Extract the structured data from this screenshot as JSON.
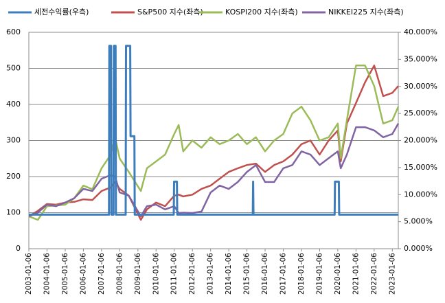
{
  "chart_data": {
    "type": "line",
    "x": [
      "2003-01-06",
      "2003-07-06",
      "2004-01-06",
      "2004-07-06",
      "2005-01-06",
      "2005-07-06",
      "2006-01-06",
      "2006-07-06",
      "2007-01-06",
      "2007-07-06",
      "2007-10-06",
      "2008-01-06",
      "2008-07-06",
      "2009-03-06",
      "2009-07-06",
      "2010-01-06",
      "2010-07-06",
      "2011-01-06",
      "2011-04-06",
      "2011-07-06",
      "2012-01-06",
      "2012-07-06",
      "2013-01-06",
      "2013-07-06",
      "2014-01-06",
      "2014-07-06",
      "2015-01-06",
      "2015-07-06",
      "2016-01-06",
      "2016-07-06",
      "2017-01-06",
      "2017-07-06",
      "2018-01-06",
      "2018-07-06",
      "2019-01-06",
      "2019-07-06",
      "2020-01-06",
      "2020-03-06",
      "2020-07-06",
      "2021-01-06",
      "2021-07-06",
      "2022-01-06",
      "2022-07-06",
      "2023-01-06",
      "2023-05-06"
    ],
    "series": [
      {
        "name": "세전수익률(우측)",
        "color": "#3e7dbc",
        "axis": "y2",
        "x": [
          "2003-01-06",
          "2007-06-04",
          "2007-06-11",
          "2007-07-16",
          "2007-07-23",
          "2007-09-03",
          "2007-09-10",
          "2007-10-15",
          "2007-10-22",
          "2008-05-05",
          "2008-05-12",
          "2008-08-04",
          "2008-08-11",
          "2008-10-27",
          "2008-11-03",
          "2010-12-27",
          "2011-01-03",
          "2011-02-28",
          "2011-03-07",
          "2015-05-04",
          "2015-05-11",
          "2015-05-18",
          "2019-11-04",
          "2019-11-11",
          "2020-01-27",
          "2020-02-03",
          "2023-05-06"
        ],
        "values": [
          6.3,
          6.3,
          37.5,
          37.5,
          6.3,
          6.3,
          37.5,
          37.5,
          6.3,
          6.3,
          37.5,
          37.5,
          20.8,
          20.8,
          6.3,
          6.3,
          12.4,
          12.4,
          6.3,
          6.3,
          12.4,
          6.3,
          6.3,
          12.4,
          12.4,
          6.3,
          6.3
        ]
      },
      {
        "name": "S&P500 지수(좌측)",
        "color": "#c0504d",
        "values": [
          90,
          105,
          124,
          122,
          128,
          130,
          137,
          135,
          160,
          170,
          185,
          166,
          147,
          80,
          109,
          128,
          118,
          147,
          150,
          145,
          150,
          166,
          175,
          194,
          213,
          223,
          232,
          236,
          213,
          232,
          242,
          261,
          290,
          300,
          261,
          300,
          328,
          242,
          347,
          404,
          461,
          508,
          423,
          432,
          451
        ]
      },
      {
        "name": "KOSPI200 지수(좌측)",
        "color": "#9bbb59",
        "values": [
          90,
          80,
          118,
          120,
          122,
          140,
          175,
          165,
          223,
          260,
          308,
          250,
          213,
          160,
          223,
          242,
          261,
          318,
          343,
          270,
          300,
          280,
          309,
          290,
          300,
          318,
          290,
          309,
          270,
          300,
          318,
          375,
          394,
          356,
          300,
          309,
          347,
          251,
          356,
          508,
          508,
          451,
          347,
          356,
          394
        ]
      },
      {
        "name": "NIKKEI225 지수(좌측)",
        "color": "#8064a2",
        "values": [
          90,
          100,
          122,
          118,
          128,
          140,
          166,
          160,
          194,
          204,
          200,
          156,
          147,
          90,
          118,
          122,
          109,
          118,
          99,
          100,
          99,
          103,
          156,
          175,
          166,
          185,
          213,
          232,
          185,
          185,
          223,
          232,
          270,
          261,
          232,
          251,
          270,
          223,
          261,
          337,
          337,
          328,
          309,
          318,
          347
        ]
      }
    ],
    "xlim": [
      "2003-01-06",
      "2023-05-06"
    ],
    "xticks": [
      "2003-01-06",
      "2004-01-06",
      "2005-01-06",
      "2006-01-06",
      "2007-01-06",
      "2008-01-06",
      "2009-01-06",
      "2010-01-06",
      "2011-01-06",
      "2012-01-06",
      "2013-01-06",
      "2014-01-06",
      "2015-01-06",
      "2016-01-06",
      "2017-01-06",
      "2018-01-06",
      "2019-01-06",
      "2020-01-06",
      "2021-01-06",
      "2022-01-06",
      "2023-01-06"
    ],
    "ylim": [
      0,
      600
    ],
    "yticks": [
      0,
      100,
      200,
      300,
      400,
      500,
      600
    ],
    "y2lim": [
      0,
      40
    ],
    "y2ticks": [
      {
        "value": 0,
        "label": "0.000%"
      },
      {
        "value": 5,
        "label": "5.000%"
      },
      {
        "value": 10,
        "label": "10.000%"
      },
      {
        "value": 15,
        "label": "15.000%"
      },
      {
        "value": 20,
        "label": "20.000%"
      },
      {
        "value": 25,
        "label": "25.000%"
      },
      {
        "value": 30,
        "label": "30.000%"
      },
      {
        "value": 35,
        "label": "35.000%"
      },
      {
        "value": 40,
        "label": "40.000%"
      }
    ],
    "grid": true,
    "legend": "top"
  }
}
